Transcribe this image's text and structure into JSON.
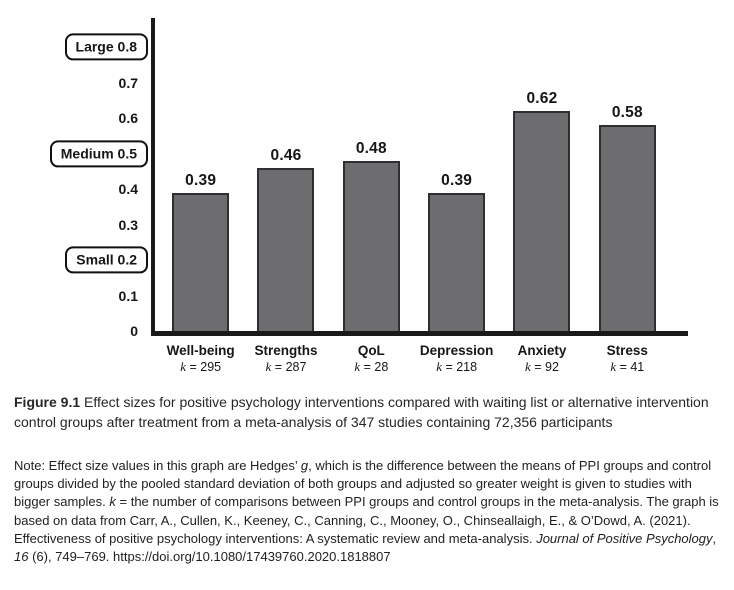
{
  "figure": {
    "caption_parts": [
      {
        "text": "Figure 9.1",
        "style": "bold"
      },
      {
        "text": "   Effect sizes for positive psychology interventions compared with waiting list or alternative intervention control groups after treatment from a meta-analysis of 347 studies containing 72,356 participants",
        "style": "regular"
      }
    ],
    "note_parts": [
      {
        "text": "Note: Effect size values in this graph are Hedges’ ",
        "style": "regular"
      },
      {
        "text": "g",
        "style": "italic"
      },
      {
        "text": ", which is the difference between the means of PPI groups and control groups divided by the pooled standard deviation of both groups and adjusted so greater weight is given to studies with bigger samples. ",
        "style": "regular"
      },
      {
        "text": "k",
        "style": "italic"
      },
      {
        "text": " = the number of comparisons between PPI groups and control groups in the meta-analysis. The graph is based on data from Carr, A., Cullen, K., Keeney, C., Canning, C., Mooney, O., Chinseallaigh, E., & O’Dowd, A. (2021). Effectiveness of positive psychology interventions: A systematic review and meta-analysis. ",
        "style": "regular"
      },
      {
        "text": "Journal of Positive Psychology",
        "style": "italic"
      },
      {
        "text": ", ",
        "style": "regular"
      },
      {
        "text": "16",
        "style": "italic"
      },
      {
        "text": " (6), 749–769. https://doi.org/10.1080/17439760.2020.1818807",
        "style": "regular"
      }
    ]
  },
  "chart_data": {
    "type": "bar",
    "title": "",
    "xlabel": "",
    "ylabel": "",
    "categories": [
      "Well-being",
      "Strengths",
      "QoL",
      "Depression",
      "Anxiety",
      "Stress"
    ],
    "values": [
      0.39,
      0.46,
      0.48,
      0.39,
      0.62,
      0.58
    ],
    "value_labels": [
      "0.39",
      "0.46",
      "0.48",
      "0.39",
      "0.62",
      "0.58"
    ],
    "k_prefix": "k",
    "k_values": [
      295,
      287,
      28,
      218,
      92,
      41
    ],
    "y_axis_ticks": [
      {
        "value": 0.8,
        "label": "Large 0.8",
        "boxed": true
      },
      {
        "value": 0.7,
        "label": "0.7",
        "boxed": false
      },
      {
        "value": 0.6,
        "label": "0.6",
        "boxed": false
      },
      {
        "value": 0.5,
        "label": "Medium 0.5",
        "boxed": true
      },
      {
        "value": 0.4,
        "label": "0.4",
        "boxed": false
      },
      {
        "value": 0.3,
        "label": "0.3",
        "boxed": false
      },
      {
        "value": 0.2,
        "label": "Small 0.2",
        "boxed": true
      },
      {
        "value": 0.1,
        "label": "0.1",
        "boxed": false
      },
      {
        "value": 0.0,
        "label": "0",
        "boxed": false
      }
    ],
    "ylim": [
      0,
      0.88
    ],
    "grid": false,
    "legend": null,
    "bar_color": "#6d6d70",
    "bar_border_color": "#2f2f31",
    "axis_color": "#1a1a1a",
    "text_color": "#161616"
  }
}
